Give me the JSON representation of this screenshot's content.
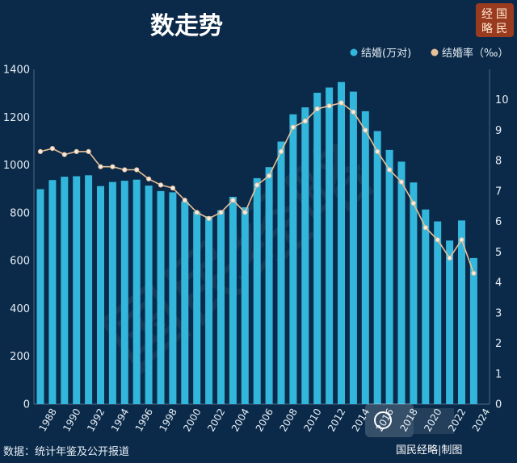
{
  "title": "数走势",
  "stamp": [
    "经",
    "国",
    "略",
    "民"
  ],
  "watermark": "国民经略",
  "source": "数据：统计年鉴及公开报道",
  "brand_footer": "国民经略|制图",
  "colors": {
    "background": "#0b2a49",
    "bar": "#33b6dc",
    "line": "#e9bf97",
    "marker_fill": "#f2eee7"
  },
  "chart_data": {
    "type": "bar",
    "title": "",
    "years": [
      1988,
      1989,
      1990,
      1991,
      1992,
      1993,
      1994,
      1995,
      1996,
      1997,
      1998,
      1999,
      2000,
      2001,
      2002,
      2003,
      2004,
      2005,
      2006,
      2007,
      2008,
      2009,
      2010,
      2011,
      2012,
      2013,
      2014,
      2015,
      2016,
      2017,
      2018,
      2019,
      2020,
      2021,
      2022,
      2023,
      2024
    ],
    "x_tick_labels": [
      "1988",
      "1990",
      "1992",
      "1994",
      "1996",
      "1998",
      "2000",
      "2002",
      "2004",
      "2006",
      "2008",
      "2010",
      "2012",
      "2014",
      "2016",
      "2018",
      "2020",
      "2022",
      "2024"
    ],
    "y_left_ticks": [
      0,
      200,
      400,
      600,
      800,
      1000,
      1200,
      1400
    ],
    "y_right_ticks": [
      0,
      1,
      2,
      3,
      4,
      5,
      6,
      7,
      8,
      9,
      10
    ],
    "ylim_left": [
      0,
      1400
    ],
    "ylim_right": [
      0,
      11
    ],
    "legend_position": "top-right",
    "grid": false,
    "series": [
      {
        "name": "结婚(万对)",
        "type": "bar",
        "axis": "left",
        "values": [
          899,
          937,
          951,
          953,
          957,
          912,
          929,
          934,
          939,
          914,
          891,
          886,
          848,
          805,
          786,
          811,
          867,
          823,
          945,
          991,
          1098,
          1212,
          1241,
          1302,
          1324,
          1347,
          1307,
          1225,
          1142,
          1063,
          1014,
          927,
          814,
          764,
          684,
          768,
          611
        ]
      },
      {
        "name": "结婚率（‰）",
        "type": "line",
        "axis": "right",
        "values": [
          8.3,
          8.4,
          8.2,
          8.3,
          8.3,
          7.8,
          7.8,
          7.7,
          7.7,
          7.4,
          7.2,
          7.1,
          6.7,
          6.3,
          6.1,
          6.3,
          6.7,
          6.3,
          7.2,
          7.5,
          8.3,
          9.1,
          9.3,
          9.7,
          9.8,
          9.9,
          9.6,
          9.0,
          8.3,
          7.7,
          7.3,
          6.6,
          5.8,
          5.4,
          4.8,
          5.4,
          4.3
        ]
      }
    ]
  }
}
